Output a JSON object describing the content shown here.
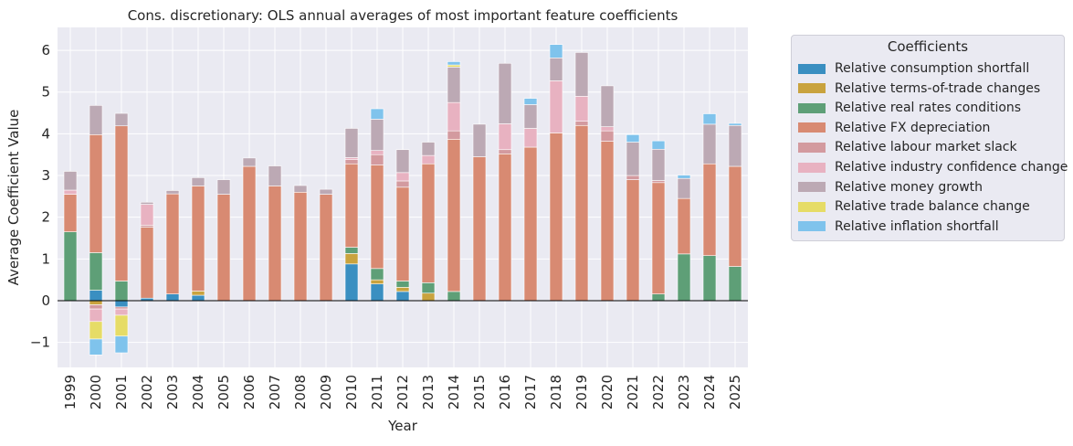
{
  "chart_data": {
    "type": "bar",
    "stacked": true,
    "title": "Cons. discretionary: OLS annual averages of most important feature coefficients",
    "xlabel": "Year",
    "ylabel": "Average Coefficient Value",
    "ylim": [
      -1.6,
      6.55
    ],
    "yticks": [
      -1,
      0,
      1,
      2,
      3,
      4,
      5,
      6
    ],
    "ytick_labels": [
      "−1",
      "0",
      "1",
      "2",
      "3",
      "4",
      "5",
      "6"
    ],
    "grid": true,
    "legend_position": "outside-right",
    "legend_title": "Coefficients",
    "categories": [
      "1999",
      "2000",
      "2001",
      "2002",
      "2003",
      "2004",
      "2005",
      "2006",
      "2007",
      "2008",
      "2009",
      "2010",
      "2011",
      "2012",
      "2013",
      "2014",
      "2015",
      "2016",
      "2017",
      "2018",
      "2019",
      "2020",
      "2021",
      "2022",
      "2023",
      "2024",
      "2025"
    ],
    "series": [
      {
        "name": "Relative consumption shortfall",
        "color": "#3a8fc1",
        "values": [
          0,
          0.25,
          -0.15,
          0.06,
          0.16,
          0.13,
          0,
          0,
          0,
          0,
          0,
          0.88,
          0.4,
          0.22,
          0,
          0,
          0,
          0,
          0,
          0,
          0,
          0,
          0,
          0,
          0,
          0,
          0
        ]
      },
      {
        "name": "Relative terms-of-trade changes",
        "color": "#c9a33e",
        "values": [
          0,
          -0.1,
          0,
          0,
          0,
          0.1,
          0,
          0,
          0,
          0,
          0,
          0.25,
          0.1,
          0.1,
          0.18,
          0,
          0,
          0,
          0,
          0,
          0,
          0,
          0,
          0,
          0,
          0,
          0
        ]
      },
      {
        "name": "Relative real rates conditions",
        "color": "#5e9f77",
        "values": [
          1.65,
          0.9,
          0.47,
          0,
          0,
          0,
          0,
          0,
          0,
          0,
          0,
          0.15,
          0.27,
          0.15,
          0.25,
          0.22,
          0,
          0,
          0,
          0,
          0,
          0,
          0,
          0.16,
          1.12,
          1.08,
          0.82
        ]
      },
      {
        "name": "Relative FX depreciation",
        "color": "#d88a72",
        "values": [
          0.9,
          2.83,
          3.72,
          1.7,
          2.4,
          2.52,
          2.55,
          3.22,
          2.75,
          2.6,
          2.55,
          2.0,
          2.48,
          2.25,
          2.85,
          3.65,
          3.45,
          3.52,
          3.68,
          4.02,
          4.2,
          3.82,
          2.9,
          2.67,
          1.33,
          2.2,
          2.4
        ]
      },
      {
        "name": "Relative labour market slack",
        "color": "#d39a9f",
        "values": [
          0,
          -0.1,
          -0.05,
          0.05,
          0,
          0,
          0,
          0,
          0,
          0,
          0,
          0.1,
          0.25,
          0.15,
          0,
          0.2,
          0,
          0.1,
          0,
          0,
          0.1,
          0.25,
          0.1,
          0.05,
          0,
          0,
          0
        ]
      },
      {
        "name": "Relative industry confidence change",
        "color": "#e8b2c1",
        "values": [
          0.1,
          -0.3,
          -0.15,
          0.5,
          0,
          0,
          0,
          0,
          0,
          0,
          0,
          0.05,
          0.1,
          0.2,
          0.2,
          0.68,
          0,
          0.62,
          0.45,
          1.25,
          0.6,
          0.1,
          0,
          0,
          0,
          0,
          0
        ]
      },
      {
        "name": "Relative money growth",
        "color": "#bca9b4",
        "values": [
          0.45,
          0.7,
          0.3,
          0.05,
          0.08,
          0.2,
          0.35,
          0.2,
          0.48,
          0.16,
          0.12,
          0.7,
          0.75,
          0.55,
          0.32,
          0.85,
          0.78,
          1.45,
          0.57,
          0.55,
          1.05,
          0.98,
          0.8,
          0.75,
          0.48,
          0.95,
          0.98
        ]
      },
      {
        "name": "Relative trade balance change",
        "color": "#e6dc66",
        "values": [
          0,
          -0.42,
          -0.5,
          0,
          0,
          0,
          0,
          0,
          0,
          0,
          0,
          0,
          0,
          0,
          0,
          0.05,
          0,
          0,
          0,
          0,
          0,
          0,
          0,
          0,
          0,
          0,
          0
        ]
      },
      {
        "name": "Relative inflation shortfall",
        "color": "#7fc3ec",
        "values": [
          0,
          -0.38,
          -0.4,
          0,
          0,
          0,
          0,
          0,
          0,
          0,
          0,
          0,
          0.25,
          0,
          0,
          0.08,
          0,
          0,
          0.15,
          0.32,
          0,
          0,
          0.18,
          0.2,
          0.08,
          0.25,
          0.05
        ]
      }
    ]
  }
}
